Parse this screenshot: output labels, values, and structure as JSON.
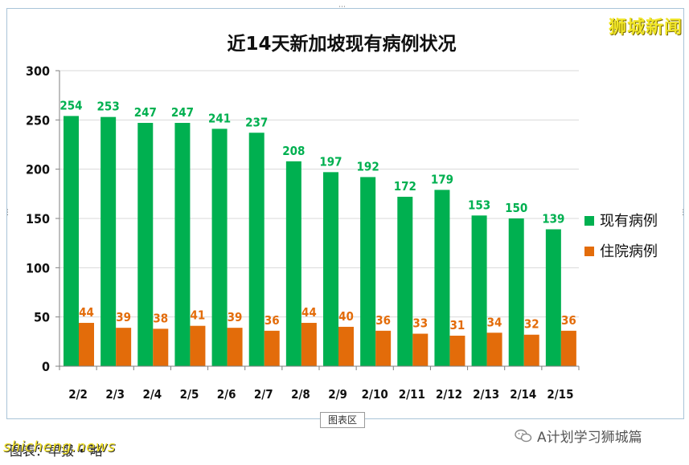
{
  "brand": "狮城新闻",
  "chart_area_label": "图表区",
  "wechat_account": "A计划学习狮城篇",
  "caption": "图表：早报 • 略",
  "watermark": "shicheng.news",
  "colors": {
    "existing": "#00b050",
    "hospitalized": "#e36c0a",
    "gridline": "#d9d9d9",
    "axis": "#7f7f7f"
  },
  "chart_data": {
    "type": "bar",
    "title": "近14天新加坡现有病例状况",
    "categories": [
      "2/2",
      "2/3",
      "2/4",
      "2/5",
      "2/6",
      "2/7",
      "2/8",
      "2/9",
      "2/10",
      "2/11",
      "2/12",
      "2/13",
      "2/14",
      "2/15"
    ],
    "series": [
      {
        "name": "现有病例",
        "values": [
          254,
          253,
          247,
          247,
          241,
          237,
          208,
          197,
          192,
          172,
          179,
          153,
          150,
          139
        ]
      },
      {
        "name": "住院病例",
        "values": [
          44,
          39,
          38,
          41,
          39,
          36,
          44,
          40,
          36,
          33,
          31,
          34,
          32,
          36
        ]
      }
    ],
    "ylim": [
      0,
      300
    ],
    "yticks": [
      0,
      50,
      100,
      150,
      200,
      250,
      300
    ],
    "xlabel": "",
    "ylabel": "",
    "grid": true,
    "legend": "right"
  }
}
